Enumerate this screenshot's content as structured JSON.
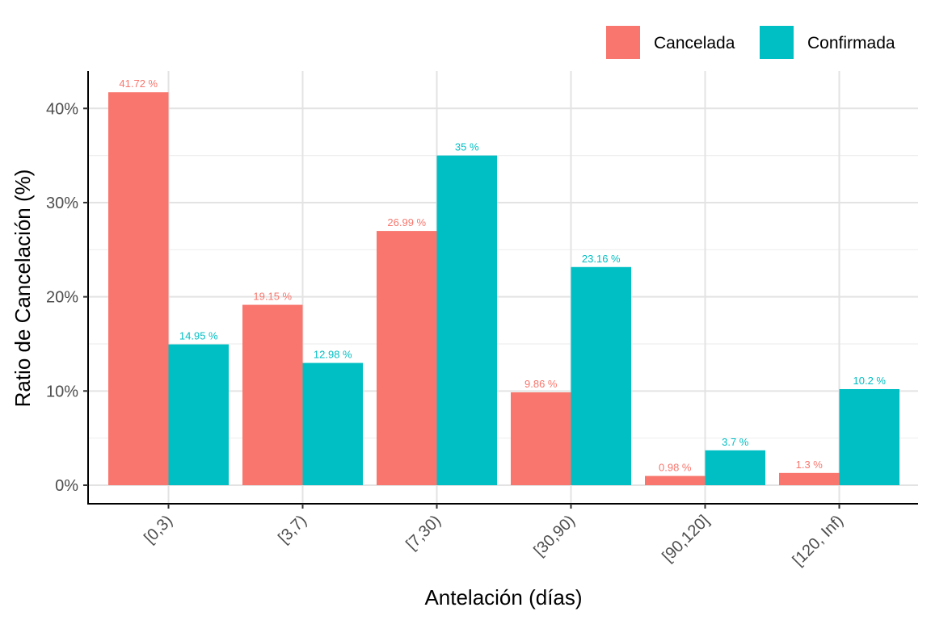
{
  "chart_data": {
    "type": "bar",
    "xlabel": "Antelación (días)",
    "ylabel": "Ratio de Cancelación (%)",
    "categories": [
      "[0,3)",
      "[3,7)",
      "[7,30)",
      "[30,90)",
      "[90,120]",
      "[120, Inf)"
    ],
    "series": [
      {
        "name": "Cancelada",
        "color": "#F8766D",
        "values": [
          41.72,
          19.15,
          26.99,
          9.86,
          0.98,
          1.3
        ],
        "labels": [
          "41.72 %",
          "19.15 %",
          "26.99 %",
          "9.86 %",
          "0.98 %",
          "1.3 %"
        ]
      },
      {
        "name": "Confirmada",
        "color": "#00BFC4",
        "values": [
          14.95,
          12.98,
          35,
          23.16,
          3.7,
          10.2
        ],
        "labels": [
          "14.95 %",
          "12.98 %",
          "35 %",
          "23.16 %",
          "3.7 %",
          "10.2 %"
        ]
      }
    ],
    "ylim": [
      0,
      44
    ],
    "yticks": [
      0,
      10,
      20,
      30,
      40
    ],
    "ytick_labels": [
      "0%",
      "10%",
      "20%",
      "30%",
      "40%"
    ],
    "grid": true,
    "legend_position": "top-right"
  }
}
